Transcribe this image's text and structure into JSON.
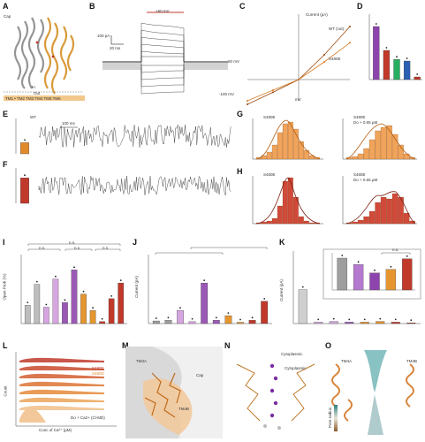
{
  "panels": {
    "A": {
      "label": "A",
      "texts": {
        "cap": "Cap",
        "in": "In",
        "out": "Out",
        "tm_row": "TM1 • TM2 TM3 TM4 TM5 TM6"
      }
    },
    "B": {
      "label": "B",
      "scale_v": "100 pA",
      "scale_t": "20 ms",
      "mv_top": "60 mV",
      "mv_bot": "-100 mV",
      "stim": "+60 mV"
    },
    "C": {
      "label": "C",
      "xlabel": "mV",
      "ylabel": "Current (pA)",
      "trace1": "WT (cut)",
      "trace2": "S480E",
      "ticks_x": [
        "-100",
        "-50",
        "0",
        "50",
        "100"
      ]
    },
    "D": {
      "label": "D"
    },
    "E": {
      "label": "E",
      "scale": "100 ms",
      "side": "WT",
      "ylabel": "Open Prob (%)"
    },
    "F": {
      "label": "F",
      "ylabel": "Open Prob (%)"
    },
    "G": {
      "label": "G",
      "left_title": "S480E",
      "right_title": "S480E",
      "right_sub": "Do + 0.65 µM"
    },
    "H": {
      "label": "H",
      "left_title": "S480E",
      "right_title": "S480E",
      "right_sub": "Do + 0.65 µM"
    },
    "I": {
      "label": "I",
      "ylabel": "Open Prob (%)",
      "ns": [
        "n.s.",
        "n.s.",
        "n.s.",
        "n.s."
      ]
    },
    "J": {
      "label": "J",
      "ylabel": "Current (pA)"
    },
    "K": {
      "label": "K",
      "ylabel": "Current (pA)",
      "inset_ns": "n.s."
    },
    "L": {
      "label": "L",
      "legend1": "S480E",
      "legend2": "S480D",
      "xlabel": "Conc of Ca²⁺ (µM)",
      "ylabel": "Count",
      "note": "Do + Ca2+ (Cl-MD)"
    },
    "M": {
      "label": "M",
      "tm4a": "TM4A",
      "tm4b": "TM4B",
      "cap": "Cap"
    },
    "N": {
      "label": "N",
      "title1": "Cytoplasmic",
      "title2": "Cytoplasmic"
    },
    "O": {
      "label": "O",
      "tm_left": "TM4A",
      "tm_right": "TM4B",
      "scale_title": "Pore radius"
    }
  },
  "chart_data": [
    {
      "type": "bar",
      "panel": "D",
      "categories": [
        "WT",
        "S480E",
        "S480D",
        "S480A",
        "S480N"
      ],
      "values": [
        1.0,
        0.55,
        0.38,
        0.35,
        0.05
      ],
      "colors": [
        "#8e44ad",
        "#c0392b",
        "#27ae60",
        "#2b5fb3",
        "#c0392b"
      ]
    },
    {
      "type": "bar",
      "panel": "E",
      "categories": [
        "WT"
      ],
      "values": [
        0.35
      ],
      "colors": [
        "#e08a2c"
      ]
    },
    {
      "type": "bar",
      "panel": "F",
      "categories": [
        "S480E"
      ],
      "values": [
        0.8
      ],
      "colors": [
        "#c0392b"
      ]
    },
    {
      "type": "bar",
      "panel": "I",
      "categories": [
        "G1",
        "G2",
        "G3",
        "G4",
        "G5",
        "G6",
        "G7",
        "G8",
        "G9",
        "G10",
        "G11"
      ],
      "values": [
        0.28,
        0.6,
        0.25,
        0.68,
        0.32,
        0.82,
        0.45,
        0.2,
        0.03,
        0.38,
        0.62
      ],
      "colors": [
        "#bdbdbd",
        "#bdbdbd",
        "#d6a6e0",
        "#d6a6e0",
        "#9b59b6",
        "#9b59b6",
        "#e5962e",
        "#e5962e",
        "#c0392b",
        "#c0392b",
        "#c0392b"
      ]
    },
    {
      "type": "bar",
      "panel": "J",
      "categories": [
        "G1",
        "G2",
        "G3",
        "G4",
        "G5",
        "G6",
        "G7",
        "G8",
        "G9",
        "G10"
      ],
      "values": [
        0.04,
        0.05,
        0.2,
        0.03,
        0.62,
        0.05,
        0.12,
        0.02,
        0.05,
        0.34
      ],
      "colors": [
        "#9e9e9e",
        "#9e9e9e",
        "#d6a6e0",
        "#d6a6e0",
        "#9b59b6",
        "#9b59b6",
        "#e5962e",
        "#e5962e",
        "#c0392b",
        "#c0392b"
      ]
    },
    {
      "type": "bar",
      "panel": "K",
      "categories": [
        "G1",
        "G2",
        "G3",
        "G4",
        "G5",
        "G6",
        "G7",
        "G8"
      ],
      "values": [
        0.48,
        0.02,
        0.03,
        0.02,
        0.02,
        0.03,
        0.02,
        0.01
      ],
      "colors": [
        "#cfcfcf",
        "#d6a6e0",
        "#d6a6e0",
        "#9b59b6",
        "#e5962e",
        "#e5962e",
        "#c0392b",
        "#c0392b"
      ]
    },
    {
      "type": "bar",
      "panel": "K-inset",
      "categories": [
        "a",
        "b",
        "c",
        "d",
        "e"
      ],
      "values": [
        0.9,
        0.72,
        0.48,
        0.58,
        0.88
      ],
      "colors": [
        "#9e9e9e",
        "#b57ad0",
        "#8e44ad",
        "#e5962e",
        "#c0392b"
      ]
    },
    {
      "type": "line",
      "panel": "C",
      "series": [
        {
          "name": "WT (cut)",
          "x": [
            -100,
            -50,
            0,
            50,
            100
          ],
          "y": [
            -0.35,
            -0.18,
            0.0,
            0.35,
            0.75
          ]
        },
        {
          "name": "S480E",
          "x": [
            -100,
            -50,
            0,
            50,
            100
          ],
          "y": [
            -0.3,
            -0.15,
            0.0,
            0.25,
            0.52
          ]
        }
      ]
    }
  ],
  "colors": {
    "orange": "#e08a2c",
    "red": "#c0392b",
    "purple": "#8e44ad",
    "grey": "#9e9e9e",
    "blue": "#2b5fb3",
    "green": "#27ae60"
  }
}
